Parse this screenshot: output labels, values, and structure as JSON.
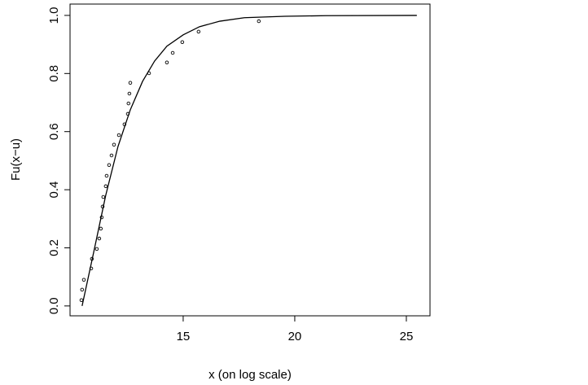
{
  "chart_data": {
    "type": "scatter",
    "xlabel": "x (on log scale)",
    "ylabel": "Fu(x−u)",
    "xlim": [
      9.93,
      26.06
    ],
    "ylim": [
      -0.034,
      1.039
    ],
    "xticks": [
      15,
      20,
      25
    ],
    "yticks": [
      {
        "value": 0,
        "label": "0.0"
      },
      {
        "value": 0.2,
        "label": "0.2"
      },
      {
        "value": 0.4,
        "label": "0.4"
      },
      {
        "value": 0.6,
        "label": "0.6"
      },
      {
        "value": 0.8,
        "label": "0.8"
      },
      {
        "value": 1,
        "label": "1.0"
      }
    ],
    "series": [
      {
        "type": "scatter",
        "color": "#000000",
        "x": [
          10.44,
          10.47,
          10.55,
          10.88,
          10.91,
          11.13,
          11.24,
          11.31,
          11.35,
          11.39,
          11.42,
          11.53,
          11.57,
          11.68,
          11.79,
          11.9,
          12.12,
          12.37,
          12.52,
          12.55,
          12.59,
          12.63,
          13.47,
          14.27,
          14.53,
          14.96,
          15.69,
          18.39
        ],
        "values": [
          0.02,
          0.056,
          0.09,
          0.129,
          0.162,
          0.196,
          0.232,
          0.266,
          0.305,
          0.342,
          0.375,
          0.412,
          0.448,
          0.485,
          0.518,
          0.555,
          0.588,
          0.625,
          0.661,
          0.697,
          0.731,
          0.768,
          0.801,
          0.838,
          0.871,
          0.908,
          0.944,
          0.98
        ]
      },
      {
        "type": "line",
        "color": "#000000",
        "x": [
          10.47,
          10.99,
          11.53,
          12.08,
          12.63,
          13.18,
          13.72,
          14.27,
          15.0,
          15.73,
          16.64,
          17.74,
          19.56,
          21.39,
          25.47
        ],
        "values": [
          0.0,
          0.185,
          0.381,
          0.549,
          0.675,
          0.773,
          0.843,
          0.894,
          0.933,
          0.961,
          0.98,
          0.992,
          0.997,
          0.999,
          1.0
        ]
      }
    ]
  }
}
